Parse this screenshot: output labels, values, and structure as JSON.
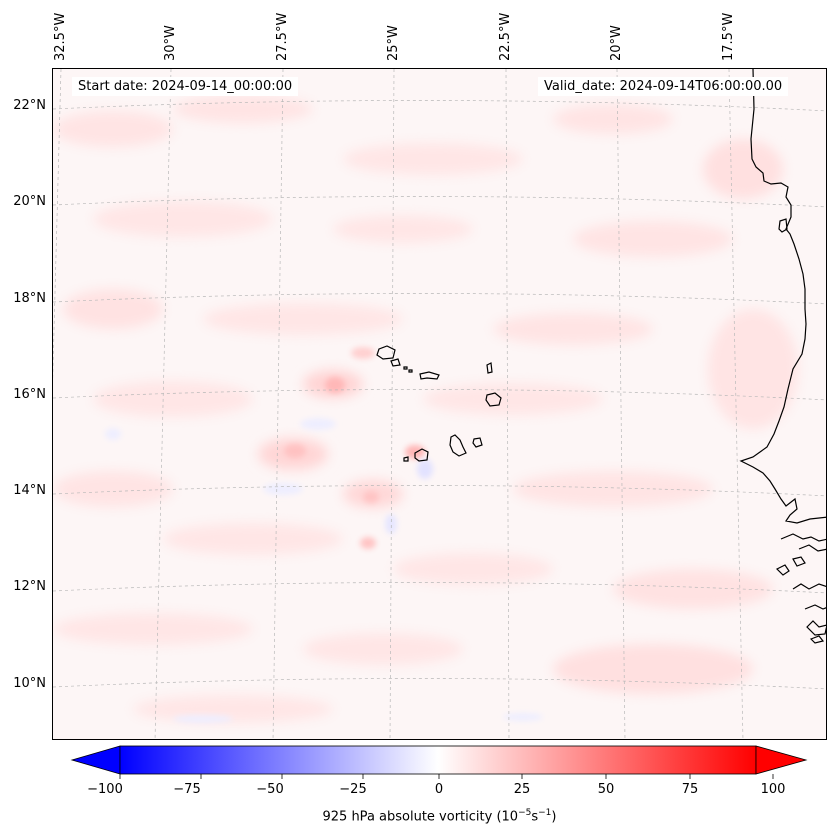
{
  "map": {
    "title_left": "Start date: 2024-09-14_00:00:00",
    "title_right": "Valid_date: 2024-09-14T06:00:00.00",
    "lon_labels": [
      "32.5°W",
      "30°W",
      "27.5°W",
      "25°W",
      "22.5°W",
      "20°W",
      "17.5°W"
    ],
    "lat_labels": [
      "22°N",
      "20°N",
      "18°N",
      "16°N",
      "14°N",
      "12°N",
      "10°N"
    ],
    "variable": "925 hPa absolute vorticity",
    "region": "Cape Verde Islands and West African coast",
    "colors": {
      "coastline": "#000000",
      "gridline": "#b0b0b0"
    }
  },
  "colorbar": {
    "ticks": [
      "−100",
      "−75",
      "−50",
      "−25",
      "0",
      "25",
      "50",
      "75",
      "100"
    ],
    "label_text": "925 hPa absolute vorticity (10",
    "label_exp1": "−5",
    "label_mid": "s",
    "label_exp2": "−1",
    "label_close": ")",
    "cmap": "bwr",
    "min": -100,
    "max": 100
  }
}
